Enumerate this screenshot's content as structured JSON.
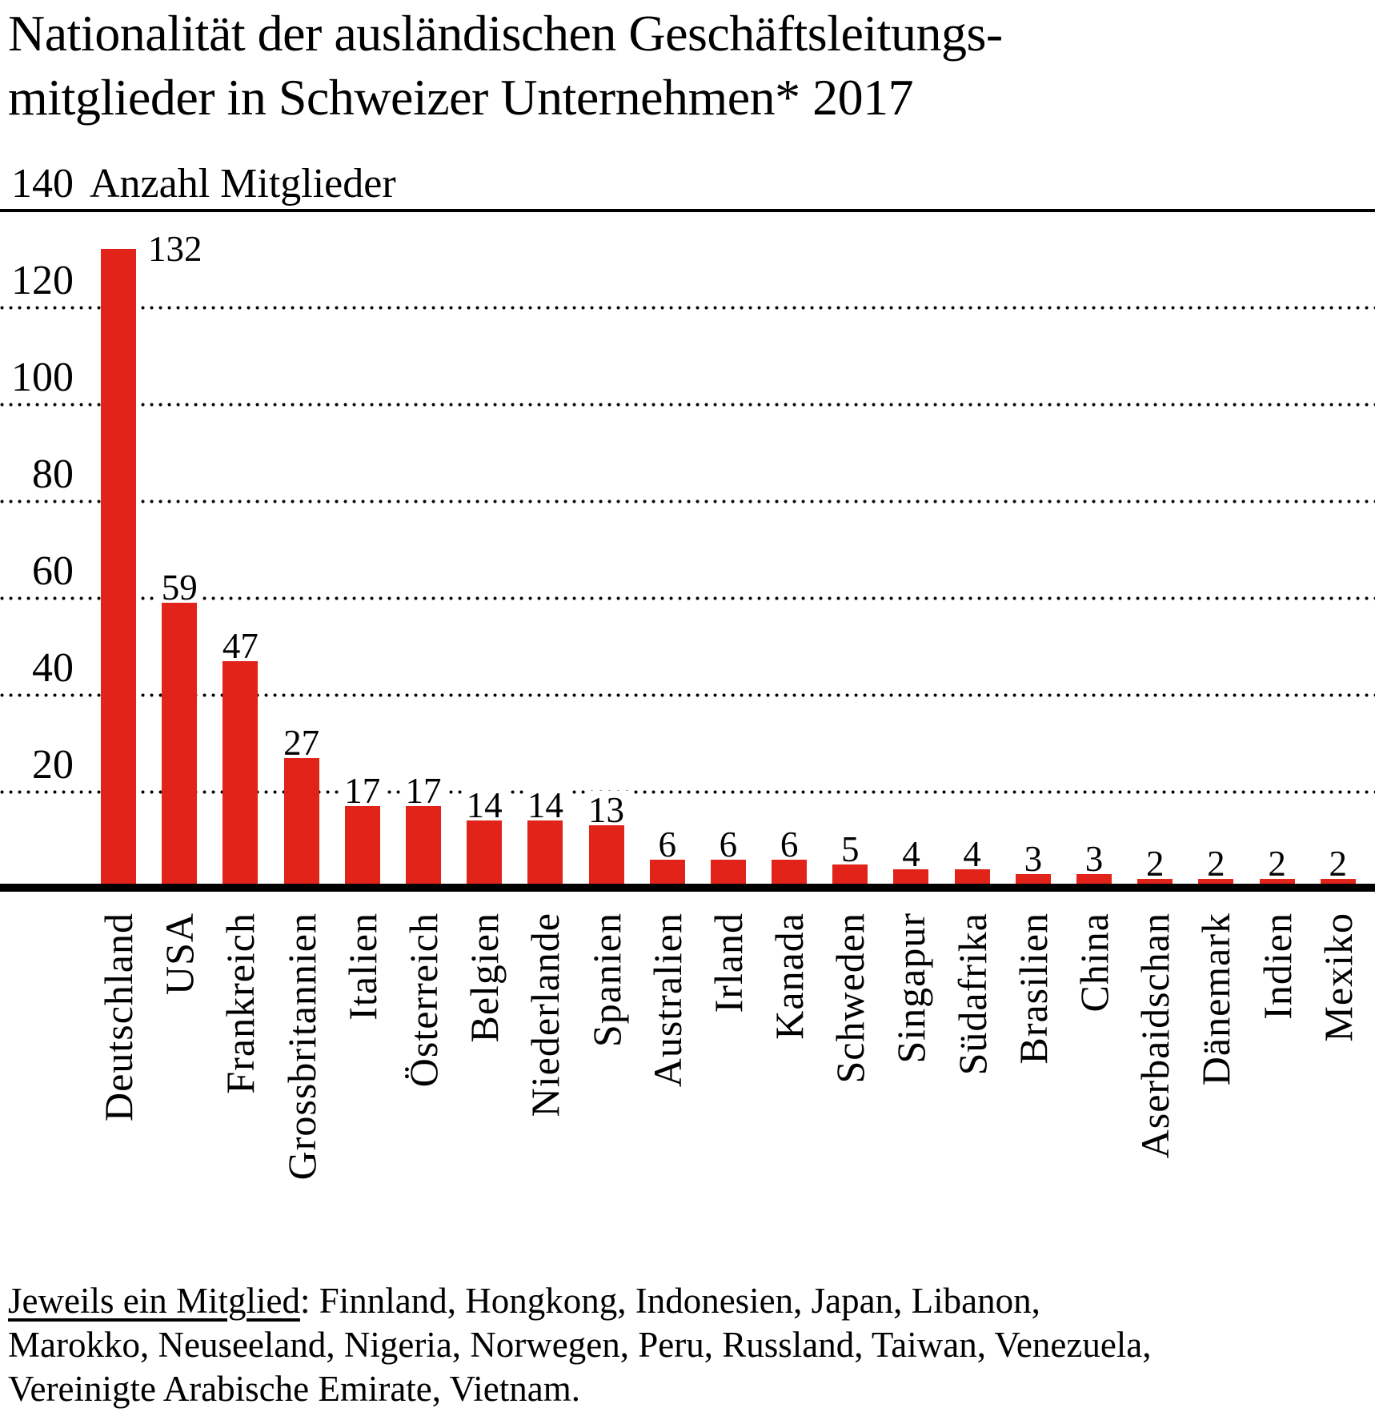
{
  "page": {
    "background": "#ffffff",
    "text_color": "#000000"
  },
  "chart_data": {
    "type": "bar",
    "title": "Nationalität der ausländischen Geschäftsleitungsmitglieder in Schweizer Unternehmen* 2017",
    "title_lines": [
      "Nationalität der ausländischen Geschäftsleitungs-",
      "mitglieder in Schweizer Unternehmen* 2017"
    ],
    "ylabel": "Anzahl Mitglieder",
    "xlabel": "",
    "ylim": [
      0,
      140
    ],
    "yticks": [
      140,
      120,
      100,
      80,
      60,
      40,
      20
    ],
    "grid": "horizontal dotted, top tick line solid, baseline solid thick",
    "legend": "none",
    "bar_color": "#e2231a",
    "categories": [
      "Deutschland",
      "USA",
      "Frankreich",
      "Grossbritannien",
      "Italien",
      "Österreich",
      "Belgien",
      "Niederlande",
      "Spanien",
      "Australien",
      "Irland",
      "Kanada",
      "Schweden",
      "Singapur",
      "Südafrika",
      "Brasilien",
      "China",
      "Aserbaidschan",
      "Dänemark",
      "Indien",
      "Mexiko"
    ],
    "values": [
      132,
      59,
      47,
      27,
      17,
      17,
      14,
      14,
      13,
      6,
      6,
      6,
      5,
      4,
      4,
      3,
      3,
      2,
      2,
      2,
      2
    ],
    "footnote": {
      "underlined": "Jeweils ein Mitglied",
      "line1_rest": ": Finnland, Hongkong, Indonesien, Japan, Libanon,",
      "line2": "Marokko, Neuseeland, Nigeria, Norwegen, Peru, Russland, Taiwan, Venezuela,",
      "line3": "Vereinigte Arabische Emirate, Vietnam."
    }
  }
}
